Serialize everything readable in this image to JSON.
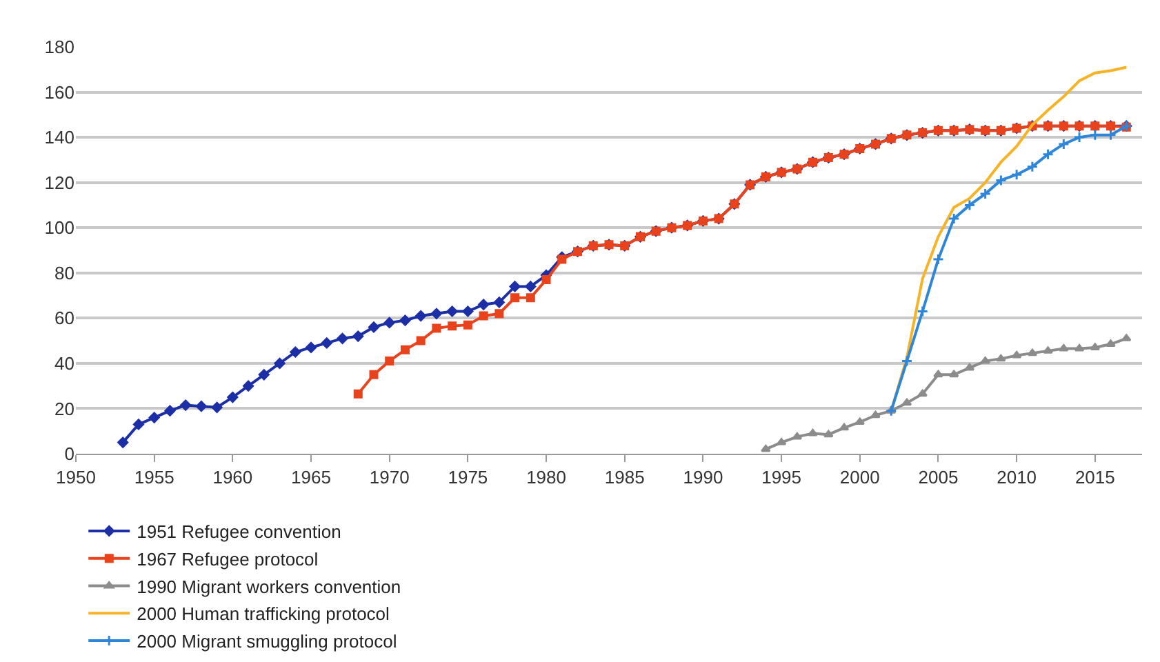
{
  "chart_data": {
    "type": "line",
    "xlim": [
      1950,
      2018
    ],
    "xticks": [
      1950,
      1955,
      1960,
      1965,
      1970,
      1975,
      1980,
      1985,
      1990,
      1995,
      2000,
      2005,
      2010,
      2015
    ],
    "ylim": [
      0,
      180
    ],
    "yticks": [
      0,
      20,
      40,
      60,
      80,
      100,
      120,
      140,
      160,
      180
    ],
    "grid": "y",
    "legend": "bottom",
    "line_style": "solid",
    "series": [
      {
        "name": "1951 Refugee convention",
        "color": "#1c2fa6",
        "marker": "diamond",
        "x": [
          1953,
          1954,
          1955,
          1956,
          1957,
          1958,
          1959,
          1960,
          1961,
          1962,
          1963,
          1964,
          1965,
          1966,
          1967,
          1968,
          1969,
          1970,
          1971,
          1972,
          1973,
          1974,
          1975,
          1976,
          1977,
          1978,
          1979,
          1980,
          1981,
          1982,
          1983,
          1984,
          1985,
          1986,
          1987,
          1988,
          1989,
          1990,
          1991,
          1992,
          1993,
          1994,
          1995,
          1996,
          1997,
          1998,
          1999,
          2000,
          2001,
          2002,
          2003,
          2004,
          2005,
          2006,
          2007,
          2008,
          2009,
          2010,
          2011,
          2012,
          2013,
          2014,
          2015,
          2016,
          2017
        ],
        "values": [
          5,
          13,
          16,
          19,
          21.5,
          21,
          20.5,
          25,
          30,
          35,
          40,
          45,
          47,
          49,
          51,
          52,
          56,
          58,
          59,
          61,
          62,
          63,
          63,
          66,
          67,
          74,
          74,
          79,
          87,
          89.5,
          92,
          92.5,
          92,
          96,
          98.5,
          100,
          101,
          103,
          104,
          110.5,
          119,
          122.5,
          124.5,
          126,
          129,
          131,
          132.5,
          135,
          137,
          139.5,
          141,
          142,
          143,
          143,
          143.5,
          143,
          143,
          144,
          145,
          145,
          145,
          145,
          145,
          145,
          145
        ]
      },
      {
        "name": "1967 Refugee protocol",
        "color": "#e8431c",
        "marker": "square",
        "x": [
          1968,
          1969,
          1970,
          1971,
          1972,
          1973,
          1974,
          1975,
          1976,
          1977,
          1978,
          1979,
          1980,
          1981,
          1982,
          1983,
          1984,
          1985,
          1986,
          1987,
          1988,
          1989,
          1990,
          1991,
          1992,
          1993,
          1994,
          1995,
          1996,
          1997,
          1998,
          1999,
          2000,
          2001,
          2002,
          2003,
          2004,
          2005,
          2006,
          2007,
          2008,
          2009,
          2010,
          2011,
          2012,
          2013,
          2014,
          2015,
          2016,
          2017
        ],
        "values": [
          26.5,
          35,
          41,
          46,
          50,
          55.5,
          56.5,
          57,
          61,
          62,
          69,
          69,
          77,
          86,
          89.5,
          92,
          92.5,
          92,
          96,
          98.5,
          100,
          101,
          103,
          104,
          110.5,
          119,
          122.5,
          124.5,
          126,
          129,
          131,
          132.5,
          135,
          137,
          139.5,
          141,
          142,
          143,
          143,
          143.5,
          143,
          143,
          144,
          145,
          145,
          145,
          145,
          145,
          145,
          144.5
        ]
      },
      {
        "name": "1990 Migrant workers convention",
        "color": "#8c8c8c",
        "marker": "triangle",
        "x": [
          1994,
          1995,
          1996,
          1997,
          1998,
          1999,
          2000,
          2001,
          2002,
          2003,
          2004,
          2005,
          2006,
          2007,
          2008,
          2009,
          2010,
          2011,
          2012,
          2013,
          2014,
          2015,
          2016,
          2017
        ],
        "values": [
          2,
          5,
          7.5,
          9,
          8.5,
          11.5,
          14,
          17,
          19,
          22.5,
          26.5,
          35,
          35,
          38,
          41,
          42,
          43.5,
          44.5,
          45.5,
          46.5,
          46.5,
          47,
          48.5,
          51
        ]
      },
      {
        "name": "2000 Human trafficking protocol",
        "color": "#f6b326",
        "marker": "none",
        "x": [
          2002,
          2003,
          2004,
          2005,
          2006,
          2007,
          2008,
          2009,
          2010,
          2011,
          2012,
          2013,
          2014,
          2015,
          2016,
          2017
        ],
        "values": [
          19,
          42.5,
          77.5,
          96,
          109,
          113,
          120,
          129,
          136,
          145.5,
          152,
          158,
          165,
          168.5,
          169.5,
          171
        ]
      },
      {
        "name": "2000 Migrant smuggling protocol",
        "color": "#2f86d9",
        "marker": "cross",
        "x": [
          2002,
          2003,
          2004,
          2005,
          2006,
          2007,
          2008,
          2009,
          2010,
          2011,
          2012,
          2013,
          2014,
          2015,
          2016,
          2017
        ],
        "values": [
          19,
          41,
          63,
          86,
          104,
          110,
          115,
          121,
          123.5,
          127,
          132.5,
          137,
          140,
          141,
          141,
          145
        ]
      }
    ]
  }
}
